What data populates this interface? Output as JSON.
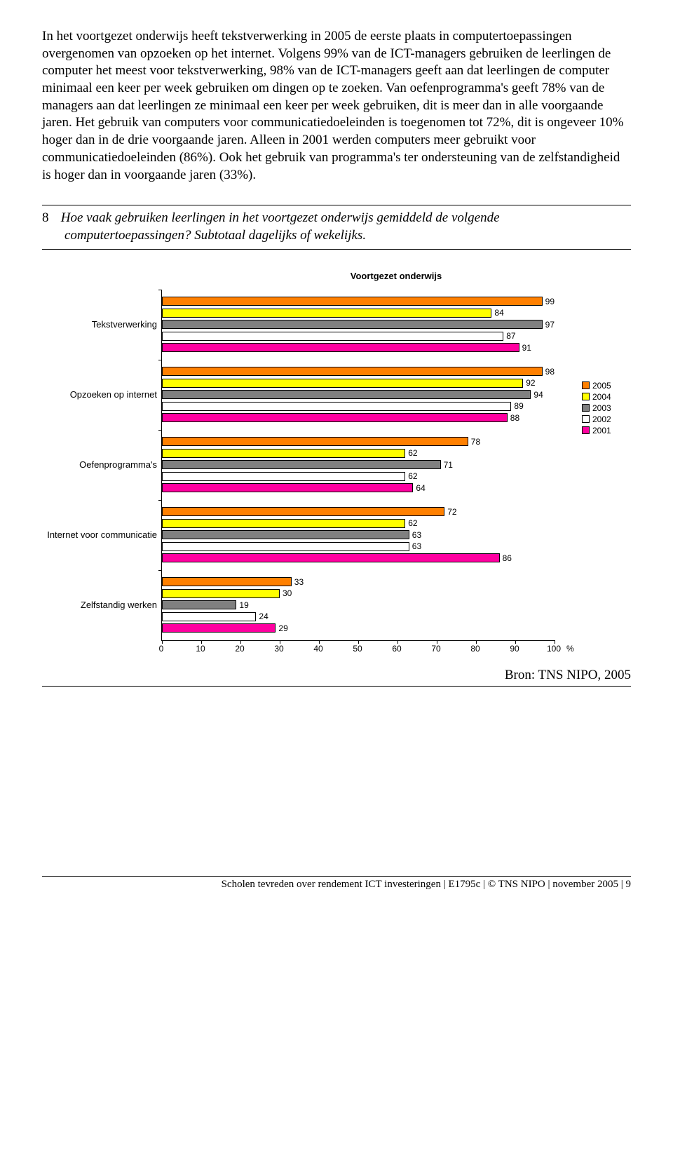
{
  "text": {
    "body_paragraph": "In het voortgezet onderwijs heeft tekstverwerking in 2005 de eerste plaats in computertoepassingen overgenomen van opzoeken op het internet. Volgens 99% van de ICT-managers gebruiken de leerlingen de computer het meest voor tekstverwerking, 98% van de ICT-managers geeft aan dat leerlingen de computer minimaal een keer per week gebruiken om dingen op te zoeken. Van oefenprogramma's geeft 78% van de managers aan dat leerlingen ze minimaal een keer per week gebruiken, dit is meer dan in alle voorgaande jaren. Het gebruik van computers voor communicatiedoeleinden is toegenomen tot 72%, dit is ongeveer 10% hoger dan in de drie voorgaande jaren. Alleen in 2001 werden computers meer gebruikt voor communicatiedoeleinden (86%). Ook het gebruik van programma's ter ondersteuning van de zelfstandigheid is hoger dan in voorgaande jaren (33%).",
    "figure_num": "8",
    "figure_caption_line1": "Hoe vaak gebruiken leerlingen in het voortgezet onderwijs gemiddeld de volgende",
    "figure_caption_line2": "computertoepassingen? Subtotaal dagelijks of wekelijks.",
    "source": "Bron: TNS NIPO, 2005",
    "footer": "Scholen tevreden over rendement ICT investeringen  | E1795c | © TNS NIPO | november 2005 | 9"
  },
  "chart": {
    "title": "Voortgezet onderwijs",
    "x_max": 100,
    "x_ticks": [
      0,
      10,
      20,
      30,
      40,
      50,
      60,
      70,
      80,
      90,
      100
    ],
    "x_unit": "%",
    "series": [
      {
        "label": "2005",
        "color": "#ff8000"
      },
      {
        "label": "2004",
        "color": "#ffff00"
      },
      {
        "label": "2003",
        "color": "#808080"
      },
      {
        "label": "2002",
        "color": "#ffffff"
      },
      {
        "label": "2001",
        "color": "#ff00a0"
      }
    ],
    "categories": [
      {
        "label": "Tekstverwerking",
        "values": [
          99,
          84,
          97,
          87,
          91
        ]
      },
      {
        "label": "Opzoeken op internet",
        "values": [
          98,
          92,
          94,
          89,
          88
        ]
      },
      {
        "label": "Oefenprogramma's",
        "values": [
          78,
          62,
          71,
          62,
          64
        ]
      },
      {
        "label": "Internet voor communicatie",
        "values": [
          72,
          62,
          63,
          63,
          86
        ]
      },
      {
        "label": "Zelfstandig werken",
        "values": [
          33,
          30,
          19,
          24,
          29
        ]
      }
    ]
  }
}
